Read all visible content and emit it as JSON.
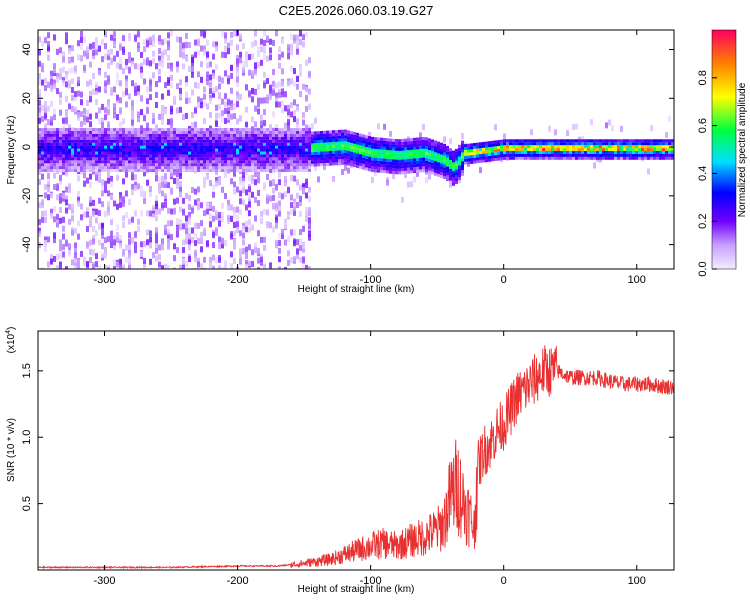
{
  "title": "C2E5.2026.060.03.19.G27",
  "colors": {
    "line": "#e83030",
    "axis": "#000000",
    "spectrum_stops": [
      "#f0e0ff",
      "#b080ff",
      "#7000ff",
      "#0000ff",
      "#00e0ff",
      "#00ff40",
      "#ffff00",
      "#ff8000",
      "#ff0060"
    ]
  },
  "chart_data": [
    {
      "type": "heatmap",
      "title": "",
      "xlabel": "Height of straight line (km)",
      "ylabel": "Frequency (Hz)",
      "xlim": [
        -350,
        128
      ],
      "ylim": [
        -50,
        48
      ],
      "xticks": [
        -300,
        -200,
        -100,
        0,
        100
      ],
      "yticks": [
        -40,
        -20,
        0,
        20,
        40
      ],
      "colorbar": {
        "label": "Normalized spectral amplitude",
        "range": [
          0,
          1
        ],
        "ticks": [
          "0.0",
          "0.2",
          "0.4",
          "0.6",
          "0.8"
        ]
      },
      "description_points": {
        "center_frequency_track": [
          {
            "x": -350,
            "y": 0
          },
          {
            "x": -150,
            "y": 0
          },
          {
            "x": -120,
            "y": 1
          },
          {
            "x": -100,
            "y": -2
          },
          {
            "x": -80,
            "y": -3
          },
          {
            "x": -60,
            "y": -2
          },
          {
            "x": -45,
            "y": -5
          },
          {
            "x": -38,
            "y": -8
          },
          {
            "x": -30,
            "y": -2
          },
          {
            "x": 0,
            "y": 0
          },
          {
            "x": 50,
            "y": 0
          },
          {
            "x": 128,
            "y": 0
          }
        ]
      }
    },
    {
      "type": "line",
      "title": "",
      "xlabel": "Height of straight line (km)",
      "ylabel": "SNR (10 * v/v)",
      "multiplier_label": "(x10",
      "multiplier_exp": "4",
      "multiplier_close": ")",
      "xlim": [
        -350,
        128
      ],
      "ylim": [
        0,
        1.8
      ],
      "xticks": [
        -300,
        -200,
        -100,
        0,
        100
      ],
      "yticks": [
        0.5,
        1.0,
        1.5
      ],
      "ytick_labels": [
        "0.5",
        "1.0",
        "1.5"
      ],
      "series": [
        {
          "name": "SNR",
          "x": [
            -350,
            -300,
            -250,
            -200,
            -170,
            -150,
            -130,
            -110,
            -100,
            -90,
            -80,
            -70,
            -60,
            -50,
            -45,
            -40,
            -35,
            -30,
            -25,
            -22,
            -20,
            -15,
            -10,
            -5,
            0,
            5,
            10,
            15,
            20,
            25,
            30,
            40,
            50,
            60,
            70,
            80,
            90,
            100,
            110,
            120,
            128
          ],
          "y": [
            0.02,
            0.02,
            0.02,
            0.03,
            0.03,
            0.05,
            0.08,
            0.15,
            0.18,
            0.2,
            0.18,
            0.22,
            0.25,
            0.3,
            0.35,
            0.55,
            0.65,
            0.5,
            0.4,
            0.3,
            0.75,
            0.9,
            0.95,
            1.05,
            1.1,
            1.2,
            1.3,
            1.35,
            1.4,
            1.45,
            1.5,
            1.5,
            1.45,
            1.45,
            1.45,
            1.42,
            1.4,
            1.4,
            1.4,
            1.38,
            1.38
          ]
        }
      ]
    }
  ]
}
